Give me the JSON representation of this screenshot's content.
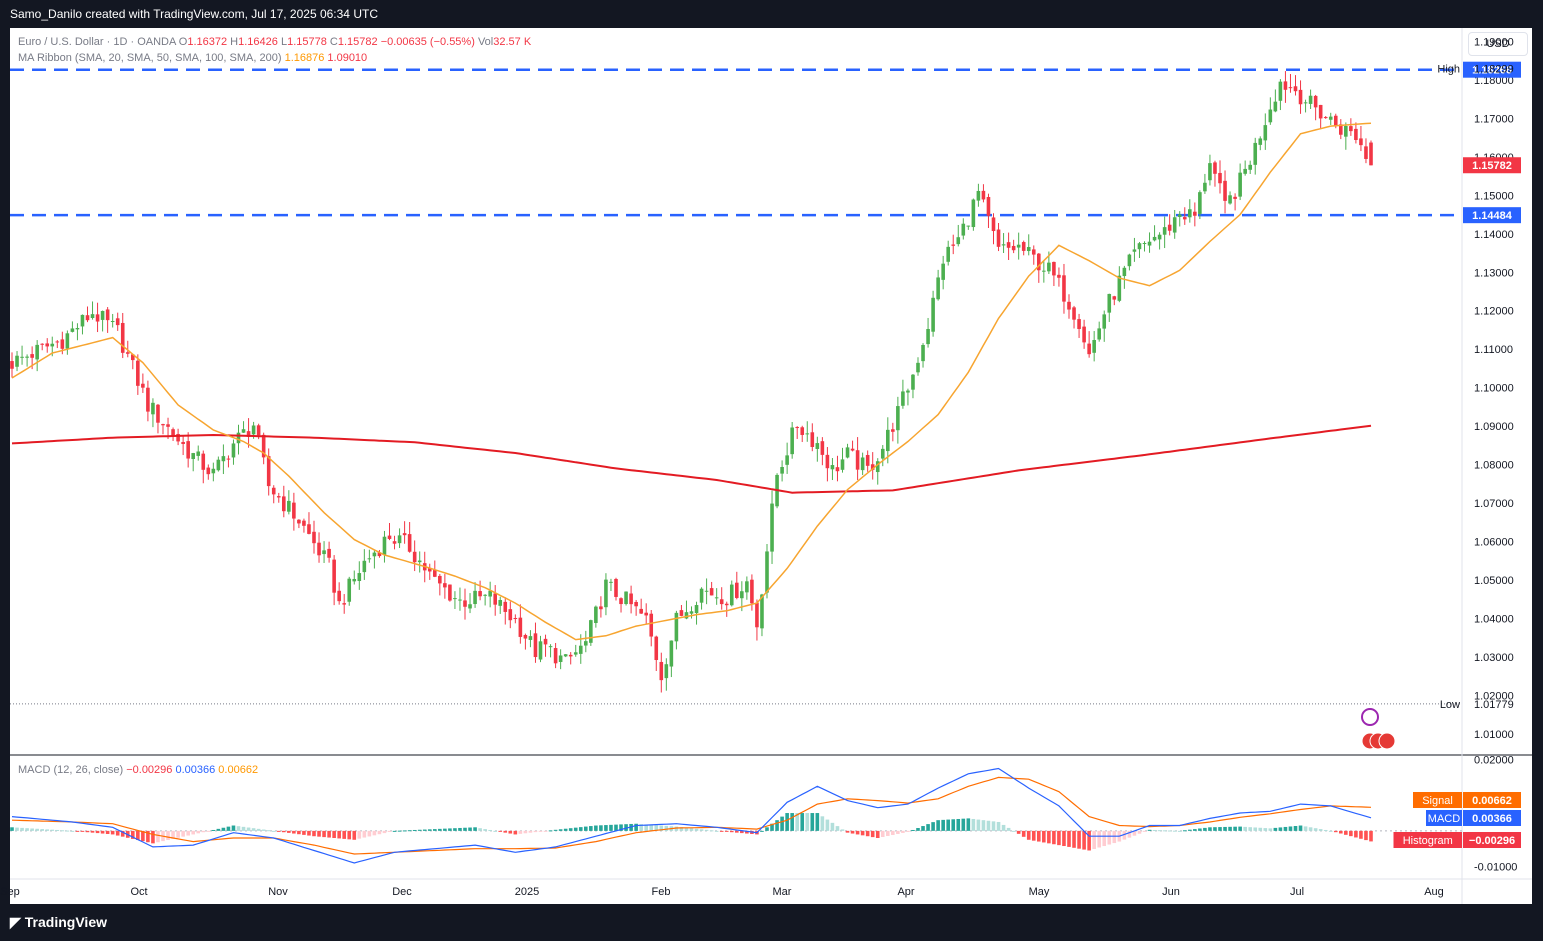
{
  "header": {
    "attribution": "Samo_Danilo created with TradingView.com, Jul 17, 2025 06:34 UTC"
  },
  "footer": {
    "brand": "TradingView"
  },
  "main_legend": {
    "symbol": "Euro / U.S. Dollar · 1D · OANDA",
    "o_label": "O",
    "o": "1.16372",
    "h_label": "H",
    "h": "1.16426",
    "l_label": "L",
    "l": "1.15778",
    "c_label": "C",
    "c": "1.15782",
    "change": "−0.00635 (−0.55%)",
    "vol_label": "Vol",
    "vol": "32.57 K"
  },
  "ma_legend": {
    "name": "MA Ribbon (SMA, 20, SMA, 50, SMA, 100, SMA, 200)",
    "v1": "1.16876",
    "v2": "1.09010"
  },
  "macd_legend": {
    "name": "MACD (12, 26, close)",
    "v1": "−0.00296",
    "v2": "0.00366",
    "v3": "0.00662"
  },
  "currency_button": "USD",
  "colors": {
    "up": "#4caf50",
    "down": "#f23645",
    "sma20": "#f7a530",
    "sma200": "#e31b23",
    "level": "#2962ff",
    "macd": "#2962ff",
    "signal": "#ff6d00",
    "hist_pos_strong": "#26a69a",
    "hist_pos_weak": "#b2dfdb",
    "hist_neg_strong": "#ff5252",
    "hist_neg_weak": "#ffcdd2"
  },
  "chart_data": {
    "type": "candlestick",
    "price_axis": {
      "ylim": [
        1.0045,
        1.1935
      ],
      "ticks": [
        "1.19000",
        "1.18000",
        "1.17000",
        "1.16000",
        "1.15000",
        "1.14000",
        "1.13000",
        "1.12000",
        "1.11000",
        "1.10000",
        "1.09000",
        "1.08000",
        "1.07000",
        "1.06000",
        "1.05000",
        "1.04000",
        "1.03000",
        "1.02000",
        "1.01000"
      ]
    },
    "time_axis": {
      "labels": [
        "Sep",
        "Oct",
        "Nov",
        "Dec",
        "2025",
        "Feb",
        "Mar",
        "Apr",
        "May",
        "Jun",
        "Jul",
        "Aug"
      ]
    },
    "levels": [
      {
        "name": "resistance",
        "value": 1.18266,
        "label": "1.18266"
      },
      {
        "name": "support",
        "value": 1.14484,
        "label": "1.14484"
      }
    ],
    "markers": {
      "high": {
        "label": "High",
        "value": "1.18299"
      },
      "low": {
        "label": "Low",
        "value": "1.01779"
      },
      "last": {
        "value": "1.15782"
      }
    },
    "anchors": {
      "close": [
        [
          0,
          1.1065
        ],
        [
          10,
          1.1125
        ],
        [
          16,
          1.1195
        ],
        [
          21,
          1.1145
        ],
        [
          27,
          1.0955
        ],
        [
          35,
          1.0835
        ],
        [
          40,
          1.0775
        ],
        [
          44,
          1.0855
        ],
        [
          48,
          1.0905
        ],
        [
          51,
          1.0745
        ],
        [
          57,
          1.0655
        ],
        [
          63,
          1.0535
        ],
        [
          65,
          1.0435
        ],
        [
          70,
          1.0545
        ],
        [
          75,
          1.0615
        ],
        [
          79,
          1.0585
        ],
        [
          84,
          1.0495
        ],
        [
          89,
          1.0445
        ],
        [
          95,
          1.0455
        ],
        [
          100,
          1.0395
        ],
        [
          104,
          1.0315
        ],
        [
          106,
          1.0325
        ],
        [
          110,
          1.0285
        ],
        [
          114,
          1.0335
        ],
        [
          118,
          1.0485
        ],
        [
          122,
          1.0445
        ],
        [
          126,
          1.0395
        ],
        [
          129,
          1.0255
        ],
        [
          132,
          1.0395
        ],
        [
          137,
          1.0475
        ],
        [
          142,
          1.0455
        ],
        [
          146,
          1.0495
        ],
        [
          148,
          1.0385
        ],
        [
          152,
          1.0775
        ],
        [
          156,
          1.0905
        ],
        [
          160,
          1.0855
        ],
        [
          163,
          1.0785
        ],
        [
          166,
          1.0825
        ],
        [
          170,
          1.0785
        ],
        [
          173,
          1.0845
        ],
        [
          176,
          1.0935
        ],
        [
          179,
          1.1035
        ],
        [
          182,
          1.1165
        ],
        [
          185,
          1.1335
        ],
        [
          188,
          1.1385
        ],
        [
          192,
          1.1505
        ],
        [
          196,
          1.1355
        ],
        [
          200,
          1.1365
        ],
        [
          203,
          1.1335
        ],
        [
          206,
          1.1305
        ],
        [
          209,
          1.1245
        ],
        [
          212,
          1.1175
        ],
        [
          214,
          1.1085
        ],
        [
          217,
          1.1195
        ],
        [
          220,
          1.1275
        ],
        [
          223,
          1.1345
        ],
        [
          226,
          1.1385
        ],
        [
          229,
          1.1405
        ],
        [
          232,
          1.1455
        ],
        [
          235,
          1.1445
        ],
        [
          238,
          1.1595
        ],
        [
          241,
          1.1465
        ],
        [
          244,
          1.1535
        ],
        [
          247,
          1.1625
        ],
        [
          250,
          1.1735
        ],
        [
          252,
          1.1795
        ],
        [
          255,
          1.1775
        ],
        [
          258,
          1.1735
        ],
        [
          261,
          1.1705
        ],
        [
          264,
          1.1675
        ],
        [
          267,
          1.1655
        ],
        [
          270,
          1.1578
        ]
      ],
      "sma20": [
        [
          0,
          1.1025
        ],
        [
          8,
          1.109
        ],
        [
          14,
          1.111
        ],
        [
          20,
          1.113
        ],
        [
          26,
          1.1065
        ],
        [
          33,
          1.0955
        ],
        [
          40,
          1.089
        ],
        [
          46,
          1.086
        ],
        [
          50,
          1.083
        ],
        [
          55,
          1.077
        ],
        [
          62,
          1.0675
        ],
        [
          68,
          1.0605
        ],
        [
          74,
          1.0565
        ],
        [
          82,
          1.0535
        ],
        [
          88,
          1.051
        ],
        [
          94,
          1.048
        ],
        [
          100,
          1.044
        ],
        [
          106,
          1.039
        ],
        [
          112,
          1.0345
        ],
        [
          118,
          1.0355
        ],
        [
          124,
          1.038
        ],
        [
          130,
          1.0395
        ],
        [
          136,
          1.041
        ],
        [
          142,
          1.042
        ],
        [
          148,
          1.044
        ],
        [
          154,
          1.053
        ],
        [
          160,
          1.064
        ],
        [
          166,
          1.0735
        ],
        [
          172,
          1.08
        ],
        [
          178,
          1.086
        ],
        [
          184,
          1.093
        ],
        [
          190,
          1.104
        ],
        [
          196,
          1.118
        ],
        [
          202,
          1.129
        ],
        [
          208,
          1.137
        ],
        [
          214,
          1.133
        ],
        [
          220,
          1.1285
        ],
        [
          226,
          1.1265
        ],
        [
          232,
          1.1305
        ],
        [
          238,
          1.138
        ],
        [
          244,
          1.145
        ],
        [
          250,
          1.156
        ],
        [
          256,
          1.166
        ],
        [
          262,
          1.168
        ],
        [
          270,
          1.16876
        ]
      ],
      "sma200": [
        [
          0,
          1.0855
        ],
        [
          20,
          1.087
        ],
        [
          40,
          1.0877
        ],
        [
          60,
          1.087
        ],
        [
          80,
          1.0858
        ],
        [
          100,
          1.083
        ],
        [
          120,
          1.079
        ],
        [
          140,
          1.076
        ],
        [
          155,
          1.0727
        ],
        [
          175,
          1.0733
        ],
        [
          200,
          1.0785
        ],
        [
          225,
          1.0825
        ],
        [
          250,
          1.0868
        ],
        [
          270,
          1.0901
        ]
      ],
      "macd": [
        [
          0,
          0.004
        ],
        [
          12,
          0.0025
        ],
        [
          20,
          0.001
        ],
        [
          28,
          -0.0045
        ],
        [
          36,
          -0.004
        ],
        [
          44,
          -0.0005
        ],
        [
          52,
          -0.002
        ],
        [
          60,
          -0.0055
        ],
        [
          68,
          -0.009
        ],
        [
          76,
          -0.006
        ],
        [
          84,
          -0.005
        ],
        [
          92,
          -0.004
        ],
        [
          100,
          -0.006
        ],
        [
          108,
          -0.0045
        ],
        [
          116,
          -0.0015
        ],
        [
          124,
          0.0015
        ],
        [
          132,
          0.002
        ],
        [
          140,
          0.001
        ],
        [
          148,
          -0.0005
        ],
        [
          154,
          0.008
        ],
        [
          160,
          0.0125
        ],
        [
          166,
          0.0085
        ],
        [
          172,
          0.0065
        ],
        [
          178,
          0.0075
        ],
        [
          184,
          0.012
        ],
        [
          190,
          0.016
        ],
        [
          196,
          0.0175
        ],
        [
          202,
          0.012
        ],
        [
          208,
          0.007
        ],
        [
          214,
          -0.0015
        ],
        [
          220,
          -0.0015
        ],
        [
          226,
          0.0015
        ],
        [
          232,
          0.0015
        ],
        [
          238,
          0.0035
        ],
        [
          244,
          0.005
        ],
        [
          250,
          0.0055
        ],
        [
          256,
          0.0075
        ],
        [
          262,
          0.007
        ],
        [
          270,
          0.00366
        ]
      ],
      "signal": [
        [
          0,
          0.003
        ],
        [
          12,
          0.0025
        ],
        [
          20,
          0.002
        ],
        [
          28,
          -0.001
        ],
        [
          36,
          -0.003
        ],
        [
          44,
          -0.002
        ],
        [
          52,
          -0.002
        ],
        [
          60,
          -0.004
        ],
        [
          68,
          -0.0065
        ],
        [
          76,
          -0.006
        ],
        [
          84,
          -0.0055
        ],
        [
          92,
          -0.005
        ],
        [
          100,
          -0.005
        ],
        [
          108,
          -0.0048
        ],
        [
          116,
          -0.003
        ],
        [
          124,
          -0.0005
        ],
        [
          132,
          0.0008
        ],
        [
          140,
          0.001
        ],
        [
          148,
          0.0005
        ],
        [
          154,
          0.003
        ],
        [
          160,
          0.0075
        ],
        [
          166,
          0.009
        ],
        [
          172,
          0.0085
        ],
        [
          178,
          0.0078
        ],
        [
          184,
          0.009
        ],
        [
          190,
          0.0125
        ],
        [
          196,
          0.015
        ],
        [
          202,
          0.0145
        ],
        [
          208,
          0.011
        ],
        [
          214,
          0.004
        ],
        [
          220,
          0.0015
        ],
        [
          226,
          0.0012
        ],
        [
          232,
          0.0015
        ],
        [
          238,
          0.0025
        ],
        [
          244,
          0.0038
        ],
        [
          250,
          0.0048
        ],
        [
          256,
          0.006
        ],
        [
          262,
          0.007
        ],
        [
          270,
          0.00662
        ]
      ]
    },
    "macd_axis": {
      "ylim": [
        -0.0135,
        0.021
      ],
      "ticks": [
        "0.02000",
        "-0.01000"
      ]
    },
    "macd_badges": [
      {
        "label": "Signal",
        "value": "0.00662"
      },
      {
        "label": "MACD",
        "value": "0.00366"
      },
      {
        "label": "Histogram",
        "value": "−0.00296"
      }
    ]
  }
}
